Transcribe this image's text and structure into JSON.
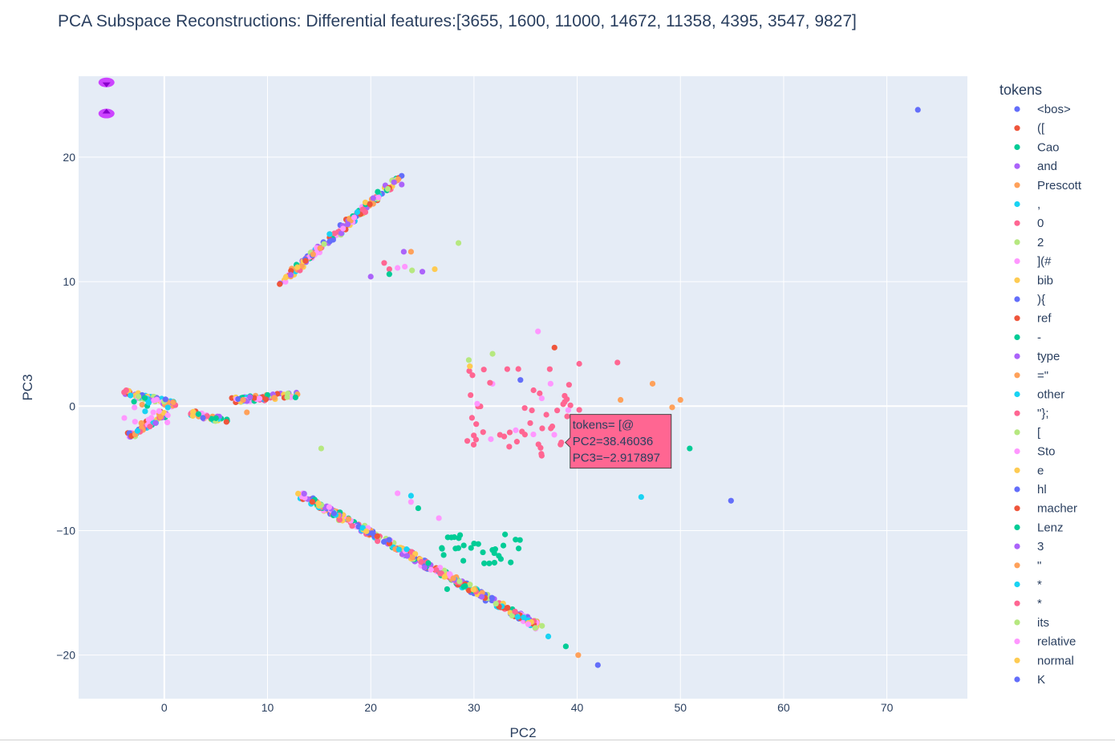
{
  "chart_data": {
    "type": "scatter",
    "title": "PCA Subspace Reconstructions: Differential features:[3655, 1600, 11000, 14672, 11358, 4395, 3547, 9827]",
    "xlabel": "PC2",
    "ylabel": "PC3",
    "xlim": [
      -8.3,
      77.8
    ],
    "ylim": [
      -23.5,
      26.5
    ],
    "xticks": [
      0,
      10,
      20,
      30,
      40,
      50,
      60,
      70
    ],
    "yticks": [
      -20,
      -10,
      0,
      10,
      20
    ],
    "xtick_labels": [
      "0",
      "10",
      "20",
      "30",
      "40",
      "50",
      "60",
      "70"
    ],
    "ytick_labels": [
      "−20",
      "−10",
      "0",
      "10",
      "20"
    ],
    "grid": true,
    "legend": {
      "title": "tokens",
      "placement": "right",
      "entries": [
        {
          "label": "<bos>",
          "color": "#636efa"
        },
        {
          "label": " ([",
          "color": "#EF553B"
        },
        {
          "label": "Cao",
          "color": "#00cc96"
        },
        {
          "label": " and",
          "color": "#ab63fa"
        },
        {
          "label": " Prescott",
          "color": "#FFA15A"
        },
        {
          "label": ",",
          "color": "#19d3f3"
        },
        {
          "label": "0",
          "color": "#FF6692"
        },
        {
          "label": "2",
          "color": "#B6E880"
        },
        {
          "label": "](#",
          "color": "#FF97FF"
        },
        {
          "label": "bib",
          "color": "#FECB52"
        },
        {
          "label": "){",
          "color": "#636efa"
        },
        {
          "label": "ref",
          "color": "#EF553B"
        },
        {
          "label": "-",
          "color": "#00cc96"
        },
        {
          "label": "type",
          "color": "#ab63fa"
        },
        {
          "label": "=\"",
          "color": "#FFA15A"
        },
        {
          "label": "other",
          "color": "#19d3f3"
        },
        {
          "label": "\"};",
          "color": "#FF6692"
        },
        {
          "label": " [",
          "color": "#B6E880"
        },
        {
          "label": "Sto",
          "color": "#FF97FF"
        },
        {
          "label": "e",
          "color": "#FECB52"
        },
        {
          "label": "hl",
          "color": "#636efa"
        },
        {
          "label": "macher",
          "color": "#EF553B"
        },
        {
          "label": " Lenz",
          "color": "#00cc96"
        },
        {
          "label": "3",
          "color": "#ab63fa"
        },
        {
          "label": "\"",
          "color": "#FFA15A"
        },
        {
          "label": " *",
          "color": "#19d3f3"
        },
        {
          "label": "*",
          "color": "#FF6692"
        },
        {
          "label": " its",
          "color": "#B6E880"
        },
        {
          "label": " relative",
          "color": "#FF97FF"
        },
        {
          "label": " normal",
          "color": "#FECB52"
        },
        {
          "label": "K",
          "color": "#636efa"
        }
      ]
    },
    "palette": [
      "#636efa",
      "#EF553B",
      "#00cc96",
      "#ab63fa",
      "#FFA15A",
      "#19d3f3",
      "#FF6692",
      "#B6E880",
      "#FF97FF",
      "#FECB52"
    ],
    "clusters": [
      {
        "kind": "line",
        "from": [
          11.2,
          9.8
        ],
        "to": [
          22.8,
          18.4
        ],
        "count": 170
      },
      {
        "kind": "line",
        "from": [
          13.2,
          -7.1
        ],
        "to": [
          36.5,
          -17.8
        ],
        "count": 420
      },
      {
        "kind": "line",
        "from": [
          -4,
          1.1
        ],
        "to": [
          1,
          0.1
        ],
        "count": 80
      },
      {
        "kind": "line",
        "from": [
          -3.3,
          -2.4
        ],
        "to": [
          0,
          -0.6
        ],
        "count": 60
      },
      {
        "kind": "line",
        "from": [
          6.5,
          0.5
        ],
        "to": [
          13,
          0.9
        ],
        "count": 70
      },
      {
        "kind": "line",
        "from": [
          2.5,
          -0.6
        ],
        "to": [
          6,
          -1.2
        ],
        "count": 40
      }
    ],
    "points": [
      {
        "x": 73,
        "y": 23.8,
        "token": "<bos>"
      },
      {
        "x": 28.5,
        "y": 13.1,
        "token": " [",
        "c": 7
      },
      {
        "x": 23,
        "y": 17.8,
        "token": "type",
        "c": 3
      },
      {
        "x": 23.2,
        "y": 12.4,
        "token": "type",
        "c": 3
      },
      {
        "x": 23.9,
        "y": 12.4,
        "token": "=\"",
        "c": 4
      },
      {
        "x": 21.3,
        "y": 11.5,
        "token": "\"};",
        "c": 6
      },
      {
        "x": 21.8,
        "y": 11,
        "token": "0",
        "c": 6
      },
      {
        "x": 22.6,
        "y": 11.1,
        "token": "](#",
        "c": 8
      },
      {
        "x": 23.3,
        "y": 11.2,
        "token": "](#",
        "c": 8
      },
      {
        "x": 24,
        "y": 10.9,
        "token": " [",
        "c": 7
      },
      {
        "x": 25,
        "y": 10.8,
        "token": "type",
        "c": 3
      },
      {
        "x": 26.2,
        "y": 11,
        "token": "bib",
        "c": 9
      },
      {
        "x": 20,
        "y": 10.4,
        "token": "type",
        "c": 3
      },
      {
        "x": 21.8,
        "y": 10.6,
        "token": "-",
        "c": 2
      },
      {
        "x": 36.2,
        "y": 6,
        "token": "](#",
        "c": 8
      },
      {
        "x": 37.8,
        "y": 4.7,
        "token": "ref",
        "c": 1
      },
      {
        "x": 29.5,
        "y": 3.7,
        "token": " [",
        "c": 7
      },
      {
        "x": 31.8,
        "y": 4.2,
        "token": " [",
        "c": 7
      },
      {
        "x": 29.6,
        "y": 3.2,
        "token": "e",
        "c": 9
      },
      {
        "x": 34.5,
        "y": 2.1,
        "token": "<bos>",
        "c": 0
      },
      {
        "x": 40.2,
        "y": 3.4,
        "token": "0",
        "c": 6
      },
      {
        "x": 43.9,
        "y": 3.5,
        "token": "0",
        "c": 6
      },
      {
        "x": 47.3,
        "y": 1.8,
        "token": "=\"",
        "c": 4
      },
      {
        "x": 44.2,
        "y": 0.5,
        "token": "=\"",
        "c": 4
      },
      {
        "x": 50,
        "y": 0.5,
        "token": "=\"",
        "c": 4
      },
      {
        "x": 49.2,
        "y": -0.1,
        "token": "=\"",
        "c": 4
      },
      {
        "x": 40.2,
        "y": -0.3,
        "token": "0",
        "c": 6
      },
      {
        "x": 50.9,
        "y": -3.4,
        "token": "-",
        "c": 2
      },
      {
        "x": 15.2,
        "y": -3.4,
        "token": " [",
        "c": 7
      },
      {
        "x": 8,
        "y": -0.5,
        "token": "=\"",
        "c": 4
      },
      {
        "x": 46.2,
        "y": -7.3,
        "token": ",",
        "c": 5
      },
      {
        "x": 54.9,
        "y": -7.6,
        "token": "<bos>",
        "c": 0
      },
      {
        "x": 22.6,
        "y": -7,
        "token": "](#",
        "c": 8
      },
      {
        "x": 23.9,
        "y": -7.2,
        "token": ",",
        "c": 5
      },
      {
        "x": 23.9,
        "y": -7.7,
        "token": "](#",
        "c": 8
      },
      {
        "x": 26.6,
        "y": -9,
        "token": "](#",
        "c": 8
      },
      {
        "x": 24.6,
        "y": -8.2,
        "token": "-",
        "c": 2
      },
      {
        "x": 42,
        "y": -20.8,
        "token": "<bos>",
        "c": 0
      },
      {
        "x": 40.1,
        "y": -20,
        "token": "=\"",
        "c": 4
      },
      {
        "x": 38.9,
        "y": -19.3,
        "token": "-",
        "c": 2
      },
      {
        "x": 37.2,
        "y": -18.5,
        "token": ",",
        "c": 5
      },
      {
        "x": 29,
        "y": -14.5,
        "token": "-",
        "c": 2
      },
      {
        "x": 27.4,
        "y": -14.7,
        "token": "-",
        "c": 2
      }
    ],
    "scatter_groups": [
      {
        "center": [
          34,
          -0.5
        ],
        "spread": [
          5.5,
          3.5
        ],
        "count": 55,
        "colors": [
          6,
          6,
          6,
          8,
          6
        ]
      },
      {
        "center": [
          30.5,
          -11.5
        ],
        "spread": [
          4,
          1.2
        ],
        "count": 30,
        "colors": [
          2
        ]
      },
      {
        "center": [
          -1.5,
          -0.5
        ],
        "spread": [
          2.5,
          1.2
        ],
        "count": 20,
        "colors": [
          2,
          5,
          8,
          4
        ]
      }
    ],
    "markers": [
      {
        "x": -5.6,
        "y": 26
      },
      {
        "x": -5.6,
        "y": 23.5
      }
    ],
    "hover": {
      "x": 38.46036,
      "y": -2.917897,
      "lines": [
        "tokens= [@",
        "PC2=38.46036",
        "PC3=−2.917897"
      ],
      "color": "#FF6692"
    }
  }
}
